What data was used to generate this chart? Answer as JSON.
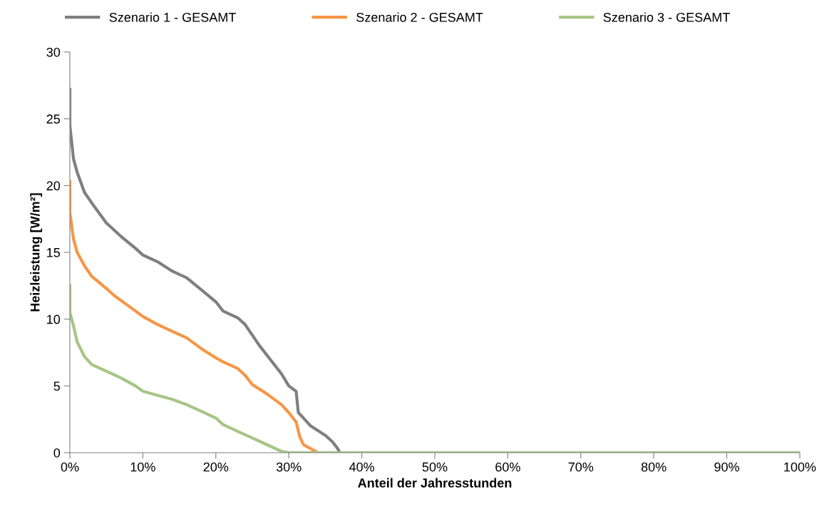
{
  "chart_data": {
    "type": "line",
    "xlabel": "Anteil der Jahresstunden",
    "ylabel": "Heizleistung [W/m²]",
    "xlim": [
      0,
      100
    ],
    "xticks": [
      {
        "value": 0,
        "label": "0%"
      },
      {
        "value": 10,
        "label": "10%"
      },
      {
        "value": 20,
        "label": "20%"
      },
      {
        "value": 30,
        "label": "30%"
      },
      {
        "value": 40,
        "label": "40%"
      },
      {
        "value": 50,
        "label": "50%"
      },
      {
        "value": 60,
        "label": "60%"
      },
      {
        "value": 70,
        "label": "70%"
      },
      {
        "value": 80,
        "label": "80%"
      },
      {
        "value": 90,
        "label": "90%"
      },
      {
        "value": 100,
        "label": "100%"
      }
    ],
    "ylim": [
      0,
      30
    ],
    "yticks": [
      0,
      5,
      10,
      15,
      20,
      25,
      30
    ],
    "grid": false,
    "legend": "top",
    "marker": "none",
    "line_style": "solid",
    "series": [
      {
        "name": "Szenario 1 - GESAMT",
        "color": "#7f7f7f",
        "x": [
          0,
          0,
          0.5,
          1,
          2,
          3,
          5,
          7,
          9,
          10,
          12,
          14,
          16,
          18,
          20,
          21,
          23,
          24,
          25,
          26,
          27,
          28,
          29,
          30,
          31,
          31.3,
          32,
          33,
          35,
          36,
          36.7,
          37,
          100
        ],
        "values": [
          27.2,
          24.5,
          22,
          21,
          19.5,
          18.7,
          17.2,
          16.2,
          15.3,
          14.8,
          14.3,
          13.6,
          13.1,
          12.2,
          11.3,
          10.6,
          10.1,
          9.6,
          8.8,
          8.0,
          7.3,
          6.6,
          5.9,
          5.0,
          4.6,
          3.0,
          2.6,
          2.0,
          1.3,
          0.8,
          0.3,
          0,
          0
        ]
      },
      {
        "name": "Szenario 2 - GESAMT",
        "color": "#f79646",
        "x": [
          0,
          0,
          0.5,
          1,
          2,
          3,
          5,
          6,
          8,
          10,
          12,
          14,
          16,
          18,
          20,
          21,
          23,
          24,
          25,
          27,
          29,
          30,
          31,
          31.5,
          32,
          33,
          34
        ],
        "values": [
          20.3,
          18.0,
          16,
          15,
          14,
          13.2,
          12.3,
          11.8,
          11,
          10.2,
          9.6,
          9.1,
          8.6,
          7.8,
          7.1,
          6.8,
          6.3,
          5.8,
          5.1,
          4.4,
          3.6,
          3.0,
          2.3,
          1.2,
          0.6,
          0.3,
          0
        ]
      },
      {
        "name": "Szenario 3 - GESAMT",
        "color": "#a6c585",
        "x": [
          0,
          0,
          0.5,
          1,
          2,
          3,
          5,
          7,
          9,
          10,
          12,
          14,
          16,
          18,
          20,
          21,
          23,
          25,
          27,
          29,
          30,
          100
        ],
        "values": [
          12.5,
          10.5,
          9.5,
          8.3,
          7.2,
          6.6,
          6.1,
          5.6,
          5.0,
          4.6,
          4.3,
          4.0,
          3.6,
          3.1,
          2.6,
          2.1,
          1.6,
          1.1,
          0.6,
          0.1,
          0,
          0
        ]
      }
    ]
  }
}
